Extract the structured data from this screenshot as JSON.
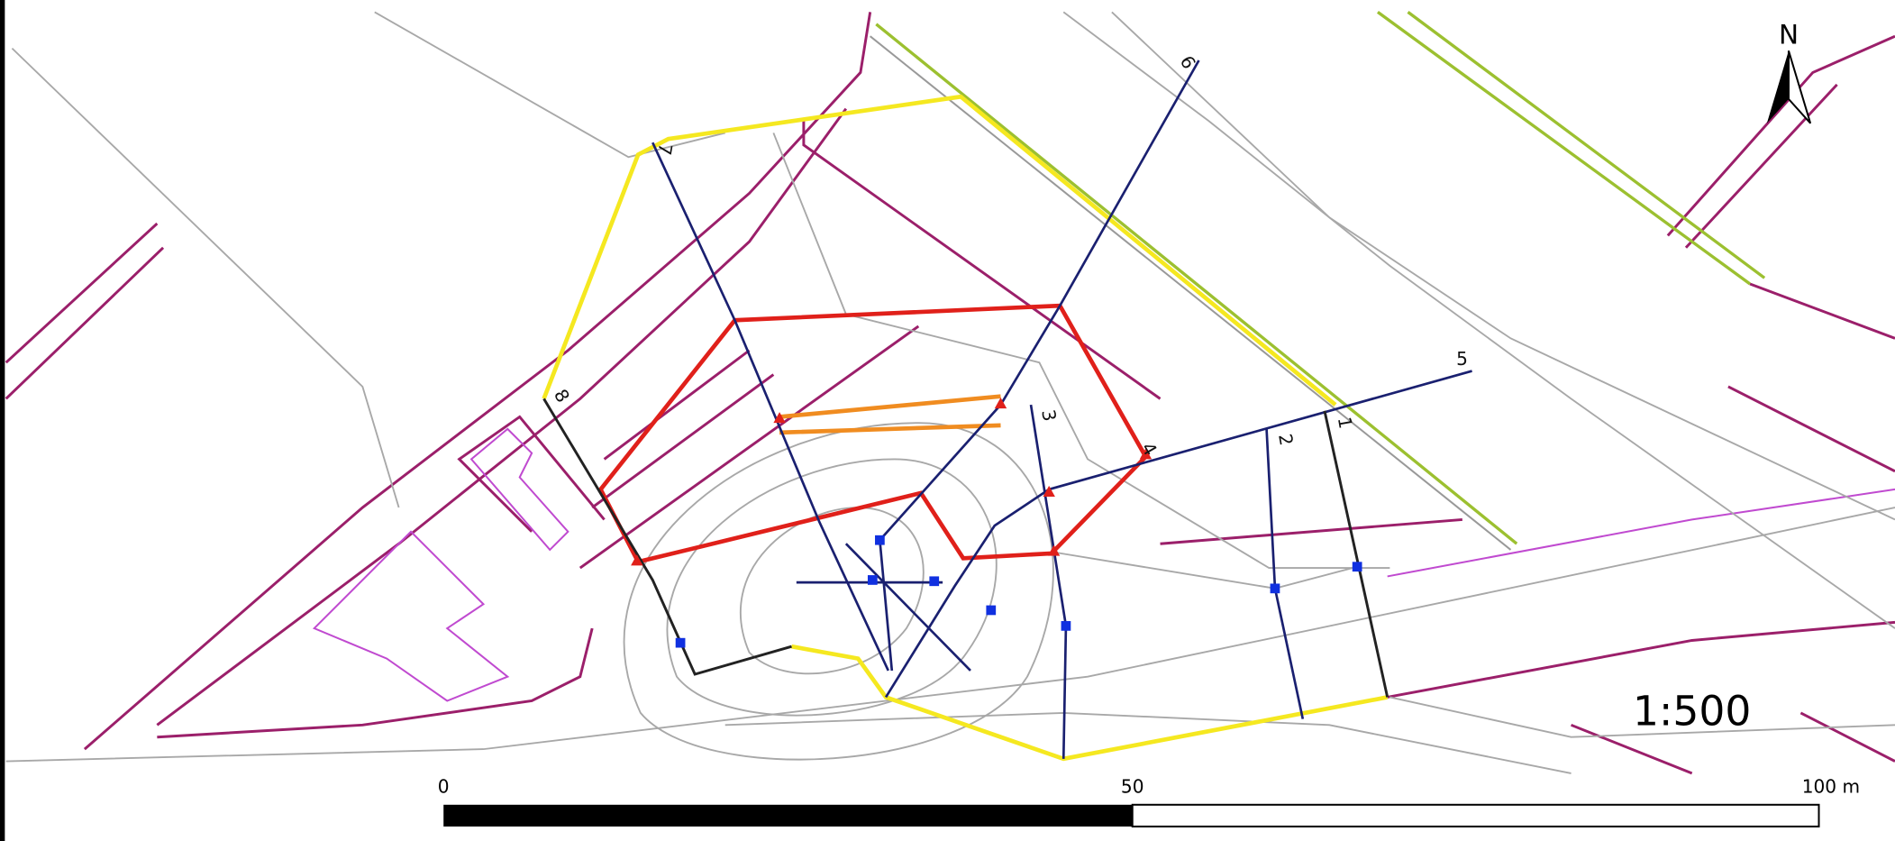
{
  "map": {
    "north": "N",
    "scale": "1:500",
    "scale_bar": {
      "labels": [
        "0",
        "50",
        "100 m"
      ]
    },
    "transect_labels": [
      "1",
      "2",
      "3",
      "4",
      "5",
      "6",
      "7",
      "8"
    ]
  }
}
